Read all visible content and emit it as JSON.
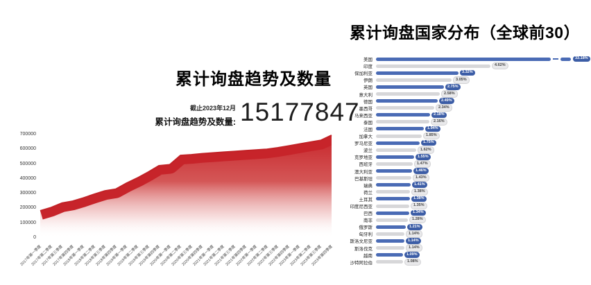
{
  "titles": {
    "left": "累计询盘趋势及数量",
    "right": "累计询盘国家分布（全球前30）"
  },
  "summary": {
    "asof": "截止2023年12月",
    "label": "累计询盘趋势及数量:",
    "value": "15177847"
  },
  "colors": {
    "area_red": "#c7242a",
    "bar_blue": "#4a6bb5",
    "bar_gray": "#d7d7d9",
    "pill_blue_bg": "#3c5da6",
    "pill_blue_text": "#ffffff",
    "pill_gray_bg": "#e9e9eb",
    "pill_gray_text": "#444444"
  },
  "chart_data": [
    {
      "id": "trend",
      "type": "area",
      "title": "累计询盘趋势及数量",
      "annotation": {
        "asof": "截止2023年12月",
        "label": "累计询盘趋势及数量:",
        "value": "15177847"
      },
      "x": [
        "2017年第一季度",
        "2017年第二季度",
        "2017年第三季度",
        "2017年第四季度",
        "2018年第一季度",
        "2018年第二季度",
        "2018年第三季度",
        "2018年第四季度",
        "2019年第一季度",
        "2019年第二季度",
        "2019年第三季度",
        "2019年第四季度",
        "2020年第一季度",
        "2020年第二季度",
        "2020年第三季度",
        "2020年第四季度",
        "2021年第一季度",
        "2021年第二季度",
        "2021年第三季度",
        "2021年第四季度",
        "2022年第一季度",
        "2022年第二季度",
        "2022年第三季度",
        "2022年第四季度",
        "2023年第一季度",
        "2023年第二季度",
        "2023年第三季度",
        "2023年第四季度"
      ],
      "values": [
        183000,
        205000,
        235000,
        248000,
        270000,
        295000,
        318000,
        330000,
        370000,
        405000,
        445000,
        488000,
        495000,
        558000,
        563000,
        570000,
        575000,
        580000,
        585000,
        590000,
        595000,
        600000,
        610000,
        622000,
        635000,
        648000,
        660000,
        695000
      ],
      "ylim": [
        0,
        700000
      ],
      "yticks": [
        "0",
        "100000",
        "200000",
        "300000",
        "400000",
        "500000",
        "600000",
        "700000"
      ],
      "grid": false,
      "area_color": "#c7242a"
    },
    {
      "id": "countries",
      "type": "bar",
      "orientation": "horizontal",
      "title": "累计询盘国家分布（全球前30）",
      "categories": [
        "美国",
        "印度",
        "保加利亚",
        "伊朗",
        "英国",
        "意大利",
        "德国",
        "墨西哥",
        "马来西亚",
        "泰国",
        "法国",
        "加拿大",
        "罗马尼亚",
        "波兰",
        "克罗地亚",
        "西班牙",
        "澳大利亚",
        "巴基斯坦",
        "瑞典",
        "荷兰",
        "土耳其",
        "印度尼西亚",
        "巴西",
        "南非",
        "俄罗斯",
        "匈牙利",
        "斯洛文尼亚",
        "斯洛伐克",
        "越南",
        "沙特阿拉伯"
      ],
      "values": [
        33.18,
        4.62,
        3.32,
        3.05,
        2.75,
        2.58,
        2.49,
        2.34,
        2.18,
        2.16,
        1.94,
        1.85,
        1.75,
        1.62,
        1.55,
        1.47,
        1.46,
        1.43,
        1.41,
        1.38,
        1.38,
        1.35,
        1.34,
        1.28,
        1.21,
        1.14,
        1.14,
        1.14,
        1.09,
        1.08
      ],
      "value_labels": [
        "33.18%",
        "4.62%",
        "3.32%",
        "3.05%",
        "2.75%",
        "2.58%",
        "2.49%",
        "2.34%",
        "2.18%",
        "2.16%",
        "1.94%",
        "1.85%",
        "1.75%",
        "1.62%",
        "1.55%",
        "1.47%",
        "1.46%",
        "1.43%",
        "1.41%",
        "1.38%",
        "1.38%",
        "1.35%",
        "1.34%",
        "1.28%",
        "1.21%",
        "1.14%",
        "1.14%",
        "1.14%",
        "1.09%",
        "1.08%"
      ],
      "axis_break_on_first": true,
      "legend": "none",
      "grid": false
    }
  ]
}
